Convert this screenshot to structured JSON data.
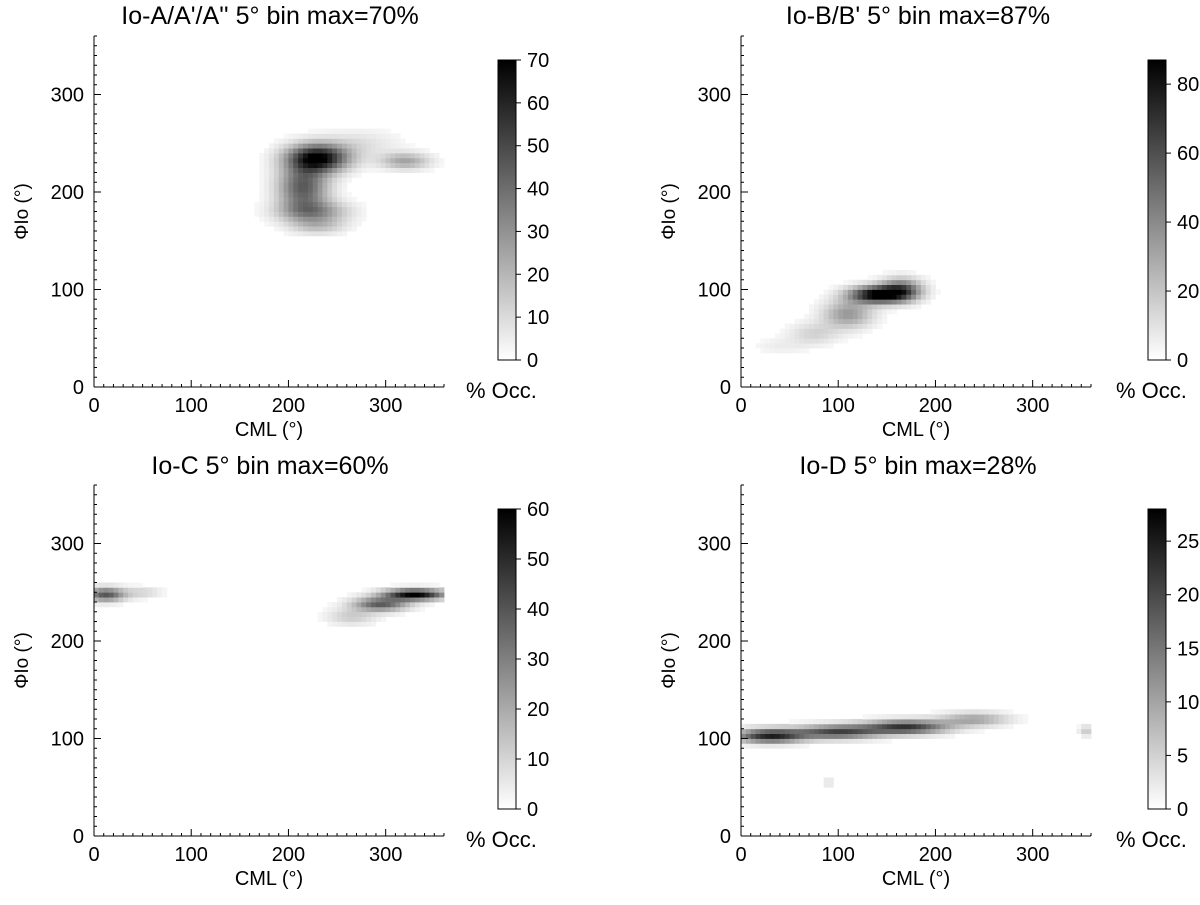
{
  "chart_data": [
    {
      "type": "heatmap",
      "title": "Io-A/A'/A''  5° bin  max=70%",
      "xlabel": "CML (°)",
      "ylabel": "ΦIo (°)",
      "xlim": [
        0,
        360
      ],
      "ylim": [
        0,
        360
      ],
      "x_ticks": [
        0,
        100,
        200,
        300
      ],
      "y_ticks": [
        0,
        100,
        200,
        300
      ],
      "bin_size_deg": 5,
      "max_percent": 70,
      "colorbar": {
        "label": "% Occ.",
        "range": [
          0,
          70
        ],
        "ticks": [
          0,
          10,
          20,
          30,
          40,
          50,
          60,
          70
        ],
        "colormap": "white-to-black"
      },
      "blobs": [
        {
          "cml": 230,
          "phi": 235,
          "sx": 22,
          "sy": 10,
          "value": 70
        },
        {
          "cml": 215,
          "phi": 205,
          "sx": 18,
          "sy": 16,
          "value": 45
        },
        {
          "cml": 225,
          "phi": 180,
          "sx": 25,
          "sy": 8,
          "value": 30
        },
        {
          "cml": 230,
          "phi": 165,
          "sx": 20,
          "sy": 6,
          "value": 15
        },
        {
          "cml": 320,
          "phi": 232,
          "sx": 18,
          "sy": 6,
          "value": 25
        },
        {
          "cml": 275,
          "phi": 250,
          "sx": 28,
          "sy": 10,
          "value": 8
        }
      ]
    },
    {
      "type": "heatmap",
      "title": "Io-B/B'  5° bin  max=87%",
      "xlabel": "CML (°)",
      "ylabel": "ΦIo (°)",
      "xlim": [
        0,
        360
      ],
      "ylim": [
        0,
        360
      ],
      "x_ticks": [
        0,
        100,
        200,
        300
      ],
      "y_ticks": [
        0,
        100,
        200,
        300
      ],
      "bin_size_deg": 5,
      "max_percent": 87,
      "colorbar": {
        "label": "% Occ.",
        "range": [
          0,
          87
        ],
        "ticks": [
          0,
          20,
          40,
          60,
          80
        ],
        "colormap": "white-to-black"
      },
      "blobs": [
        {
          "cml": 140,
          "phi": 95,
          "sx": 20,
          "sy": 6,
          "value": 87
        },
        {
          "cml": 165,
          "phi": 100,
          "sx": 15,
          "sy": 8,
          "value": 55
        },
        {
          "cml": 110,
          "phi": 75,
          "sx": 18,
          "sy": 10,
          "value": 35
        },
        {
          "cml": 75,
          "phi": 55,
          "sx": 18,
          "sy": 8,
          "value": 15
        },
        {
          "cml": 40,
          "phi": 42,
          "sx": 20,
          "sy": 6,
          "value": 6
        }
      ]
    },
    {
      "type": "heatmap",
      "title": "Io-C  5° bin  max=60%",
      "xlabel": "CML (°)",
      "ylabel": "ΦIo (°)",
      "xlim": [
        0,
        360
      ],
      "ylim": [
        0,
        360
      ],
      "x_ticks": [
        0,
        100,
        200,
        300
      ],
      "y_ticks": [
        0,
        100,
        200,
        300
      ],
      "bin_size_deg": 5,
      "max_percent": 60,
      "colorbar": {
        "label": "% Occ.",
        "range": [
          0,
          60
        ],
        "ticks": [
          0,
          10,
          20,
          30,
          40,
          50,
          60
        ],
        "colormap": "white-to-black"
      },
      "blobs": [
        {
          "cml": 330,
          "phi": 248,
          "sx": 22,
          "sy": 4,
          "value": 60
        },
        {
          "cml": 295,
          "phi": 238,
          "sx": 20,
          "sy": 5,
          "value": 38
        },
        {
          "cml": 265,
          "phi": 225,
          "sx": 18,
          "sy": 6,
          "value": 12
        },
        {
          "cml": 12,
          "phi": 248,
          "sx": 14,
          "sy": 5,
          "value": 40
        },
        {
          "cml": 50,
          "phi": 250,
          "sx": 14,
          "sy": 4,
          "value": 10
        }
      ]
    },
    {
      "type": "heatmap",
      "title": "Io-D  5° bin  max=28%",
      "xlabel": "CML (°)",
      "ylabel": "ΦIo (°)",
      "xlim": [
        0,
        360
      ],
      "ylim": [
        0,
        360
      ],
      "x_ticks": [
        0,
        100,
        200,
        300
      ],
      "y_ticks": [
        0,
        100,
        200,
        300
      ],
      "bin_size_deg": 5,
      "max_percent": 28,
      "colorbar": {
        "label": "% Occ.",
        "range": [
          0,
          28
        ],
        "ticks": [
          0,
          5,
          10,
          15,
          20,
          25
        ],
        "colormap": "white-to-black"
      },
      "blobs": [
        {
          "cml": 30,
          "phi": 103,
          "sx": 25,
          "sy": 5,
          "value": 24
        },
        {
          "cml": 100,
          "phi": 107,
          "sx": 30,
          "sy": 5,
          "value": 20
        },
        {
          "cml": 170,
          "phi": 112,
          "sx": 30,
          "sy": 5,
          "value": 22
        },
        {
          "cml": 240,
          "phi": 120,
          "sx": 25,
          "sy": 5,
          "value": 10
        },
        {
          "cml": 355,
          "phi": 108,
          "sx": 5,
          "sy": 4,
          "value": 6
        },
        {
          "cml": 90,
          "phi": 55,
          "sx": 4,
          "sy": 3,
          "value": 4
        }
      ]
    }
  ]
}
